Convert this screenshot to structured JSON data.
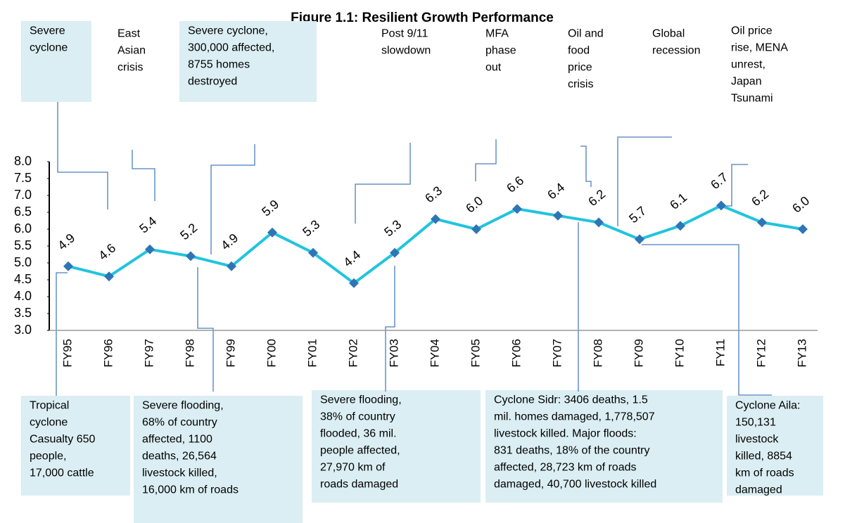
{
  "chart_data": {
    "type": "line",
    "title": "Figure 1.1: Resilient Growth Performance",
    "categories": [
      "FY95",
      "FY96",
      "FY97",
      "FY98",
      "FY99",
      "FY00",
      "FY01",
      "FY02",
      "FY03",
      "FY04",
      "FY05",
      "FY06",
      "FY07",
      "FY08",
      "FY09",
      "FY10",
      "FY11",
      "FY12",
      "FY13"
    ],
    "series": [
      {
        "color": "#21c4dd",
        "marker_color": "#2e75b6",
        "values": [
          4.9,
          4.6,
          5.4,
          5.2,
          4.9,
          5.9,
          5.3,
          4.4,
          5.3,
          6.3,
          6.0,
          6.6,
          6.4,
          6.2,
          5.7,
          6.1,
          6.7,
          6.2,
          6.0
        ],
        "value_labels": [
          "4.9",
          "4.6",
          "5.4",
          "5.2",
          "4.9",
          "5.9",
          "5.3",
          "4.4",
          "5.3",
          "6.3",
          "6.0",
          "6.6",
          "6.4",
          "6.2",
          "5.7",
          "6.1",
          "6.7",
          "6.2",
          "6.0"
        ]
      }
    ],
    "ylim": [
      3,
      8
    ],
    "yticks": [
      {
        "value": 3,
        "label": "3.0"
      },
      {
        "value": 3.5,
        "label": "3.5"
      },
      {
        "value": 4,
        "label": "4.0"
      },
      {
        "value": 4.5,
        "label": "4.5"
      },
      {
        "value": 5,
        "label": "5.0"
      },
      {
        "value": 5.5,
        "label": "5.5"
      },
      {
        "value": 6,
        "label": "6.0"
      },
      {
        "value": 6.5,
        "label": "6.5"
      },
      {
        "value": 7,
        "label": "7.0"
      },
      {
        "value": 7.5,
        "label": "7.5"
      },
      {
        "value": 8,
        "label": "8.0"
      }
    ],
    "annotations_top": [
      {
        "lines": [
          "Severe",
          "cyclone"
        ]
      },
      {
        "lines": [
          "East",
          "Asian",
          "crisis"
        ]
      },
      {
        "lines": [
          "Severe cyclone,",
          "300,000 affected,",
          "8755 homes",
          "destroyed"
        ]
      },
      {
        "lines": [
          "Post 9/11",
          "slowdown"
        ]
      },
      {
        "lines": [
          "MFA",
          "phase",
          "out"
        ]
      },
      {
        "lines": [
          "Oil and",
          "food",
          "price",
          "crisis"
        ]
      },
      {
        "lines": [
          "Global",
          "recession"
        ]
      },
      {
        "lines": [
          "Oil price",
          "rise, MENA",
          "unrest,",
          "Japan",
          "Tsunami"
        ]
      }
    ],
    "annotations_bottom": [
      {
        "lines": [
          "Tropical",
          "cyclone",
          "Casualty 650",
          "people,",
          "17,000 cattle"
        ]
      },
      {
        "lines": [
          "Severe flooding,",
          "68% of country",
          "affected, 1100",
          "deaths, 26,564",
          "livestock killed,",
          "16,000 km of roads"
        ]
      },
      {
        "lines": [
          "Severe flooding,",
          "38% of country",
          "flooded, 36 mil.",
          "people affected,",
          "27,970 km of",
          "roads damaged"
        ]
      },
      {
        "lines": [
          "Cyclone Sidr: 3406 deaths, 1.5",
          "mil. homes damaged,  1,778,507",
          "livestock killed. Major floods:",
          "831 deaths, 18% of the country",
          "affected, 28,723 km of roads",
          "damaged, 40,700 livestock killed"
        ]
      },
      {
        "lines": [
          "Cyclone Aila:",
          "150,131",
          "livestock",
          "killed, 8854",
          "km of roads",
          "damaged"
        ]
      }
    ]
  }
}
